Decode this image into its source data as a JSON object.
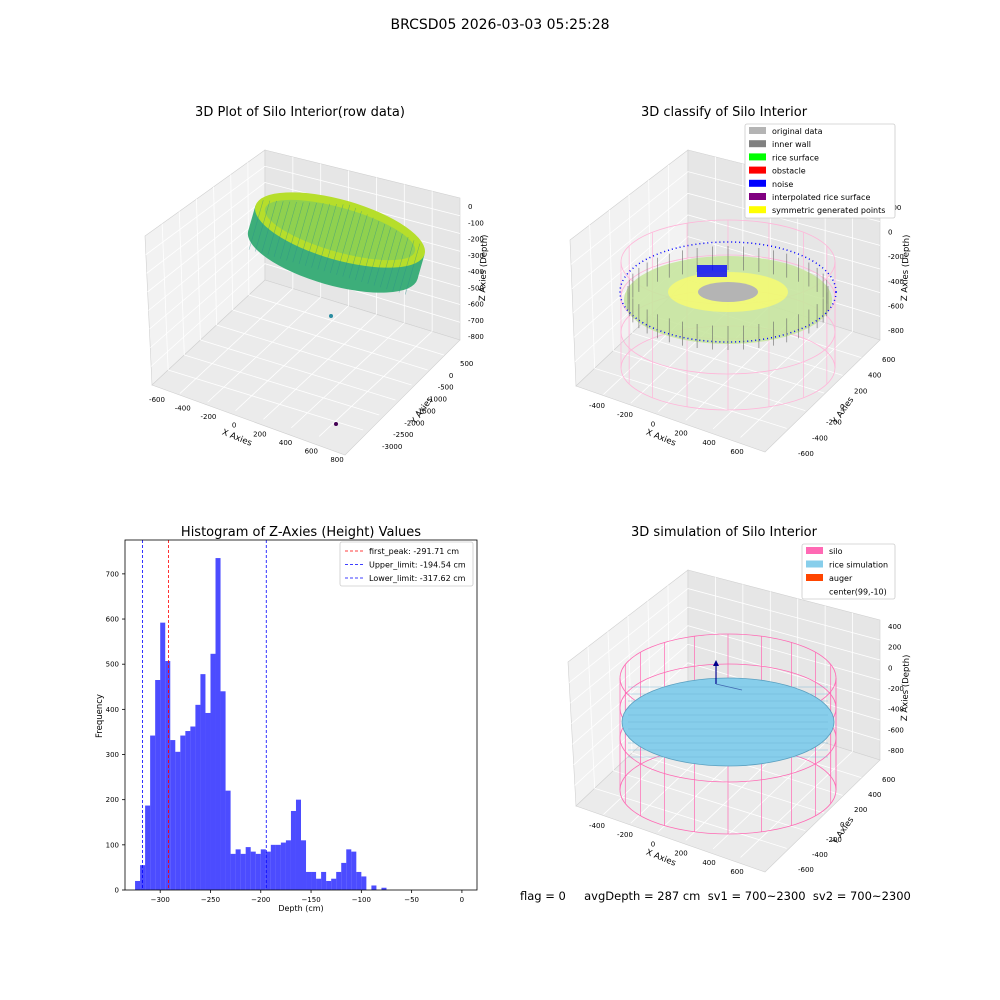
{
  "suptitle": "BRCSD05 2026-03-03 05:25:28",
  "footer": "flag = 0     avgDepth = 287 cm  sv1 = 700~2300  sv2 = 700~2300",
  "panels": {
    "raw": {
      "title": "3D Plot of Silo Interior(row data)",
      "xlabel": "X Axies",
      "ylabel": "Y Axies",
      "zlabel": "Z Axies (Depth)",
      "xticks": [
        "-600",
        "-400",
        "-200",
        "0",
        "200",
        "400",
        "600",
        "800"
      ],
      "yticks": [
        "500",
        "0",
        "-500",
        "-1000",
        "-1500",
        "-2000",
        "-2500",
        "-3000"
      ],
      "zticks": [
        "0",
        "-100",
        "-200",
        "-300",
        "-400",
        "-500",
        "-600",
        "-700",
        "-800"
      ]
    },
    "classify": {
      "title": "3D classify of Silo Interior",
      "xlabel": "X Axies",
      "ylabel": "Y Axies",
      "zlabel": "Z Axies (Depth)",
      "xticks": [
        "-400",
        "-200",
        "0",
        "200",
        "400",
        "600"
      ],
      "yticks": [
        "600",
        "400",
        "200",
        "0",
        "-200",
        "-400",
        "-600"
      ],
      "zticks": [
        "200",
        "0",
        "-200",
        "-400",
        "-600",
        "-800"
      ],
      "legend": [
        {
          "label": "original data",
          "color": "#b4b4b4"
        },
        {
          "label": "inner wall",
          "color": "#808080"
        },
        {
          "label": "rice surface",
          "color": "#00ff00"
        },
        {
          "label": "obstacle",
          "color": "#ff0000"
        },
        {
          "label": "noise",
          "color": "#0000ff"
        },
        {
          "label": "interpolated rice surface",
          "color": "#800080"
        },
        {
          "label": "symmetric generated points",
          "color": "#ffff00"
        }
      ]
    },
    "simulation": {
      "title": "3D simulation of Silo Interior",
      "xlabel": "X Axies",
      "ylabel": "Y Axies",
      "zlabel": "Z Axies (Depth)",
      "xticks": [
        "-400",
        "-200",
        "0",
        "200",
        "400",
        "600"
      ],
      "yticks": [
        "600",
        "400",
        "200",
        "0",
        "-200",
        "-400",
        "-600"
      ],
      "zticks": [
        "400",
        "200",
        "0",
        "-200",
        "-400",
        "-600",
        "-800"
      ],
      "legend": [
        {
          "label": "silo",
          "color": "#ff69b4"
        },
        {
          "label": "rice simulation",
          "color": "#87ceeb"
        },
        {
          "label": "auger",
          "color": "#ff4500"
        },
        {
          "label": "center(99,-10)",
          "color": ""
        }
      ]
    }
  },
  "chart_data": {
    "type": "bar",
    "title": "Histogram of Z-Axies (Height) Values",
    "xlabel": "Depth (cm)",
    "ylabel": "Frequency",
    "xlim": [
      -335,
      15
    ],
    "ylim": [
      0,
      775
    ],
    "xticks": [
      -300,
      -250,
      -200,
      -150,
      -100,
      -50,
      0
    ],
    "yticks": [
      0,
      100,
      200,
      300,
      400,
      500,
      600,
      700
    ],
    "bar_color": "#0000ff",
    "bin_width": 5,
    "bins_start": [
      -325,
      -320,
      -315,
      -310,
      -305,
      -300,
      -295,
      -290,
      -285,
      -280,
      -275,
      -270,
      -265,
      -260,
      -255,
      -250,
      -245,
      -240,
      -235,
      -230,
      -225,
      -220,
      -215,
      -210,
      -205,
      -200,
      -195,
      -190,
      -185,
      -180,
      -175,
      -170,
      -165,
      -160,
      -155,
      -150,
      -145,
      -140,
      -135,
      -130,
      -125,
      -120,
      -115,
      -110,
      -105,
      -100,
      -95,
      -90,
      -85,
      -80,
      -75,
      -70,
      -65,
      -60,
      -55,
      -50,
      -45,
      -40,
      -35,
      -30,
      -25,
      -20,
      -15,
      -10,
      -5,
      0
    ],
    "counts": [
      20,
      55,
      187,
      342,
      465,
      592,
      507,
      332,
      306,
      342,
      352,
      362,
      410,
      478,
      392,
      523,
      735,
      440,
      220,
      80,
      90,
      80,
      95,
      85,
      80,
      90,
      85,
      100,
      100,
      105,
      110,
      175,
      200,
      110,
      40,
      40,
      25,
      40,
      20,
      25,
      40,
      60,
      90,
      85,
      40,
      30,
      0,
      10,
      0,
      5,
      0,
      0,
      0,
      0,
      0,
      0,
      0,
      0,
      0,
      0,
      0,
      0,
      0,
      0,
      0,
      0
    ],
    "vlines": [
      {
        "label": "first_peak: -291.71 cm",
        "x": -291.71,
        "color": "#ff0000"
      },
      {
        "label": "Upper_limit: -194.54 cm",
        "x": -194.54,
        "color": "#0000ff"
      },
      {
        "label": "Lower_limit: -317.62 cm",
        "x": -317.62,
        "color": "#0000ff"
      }
    ]
  }
}
